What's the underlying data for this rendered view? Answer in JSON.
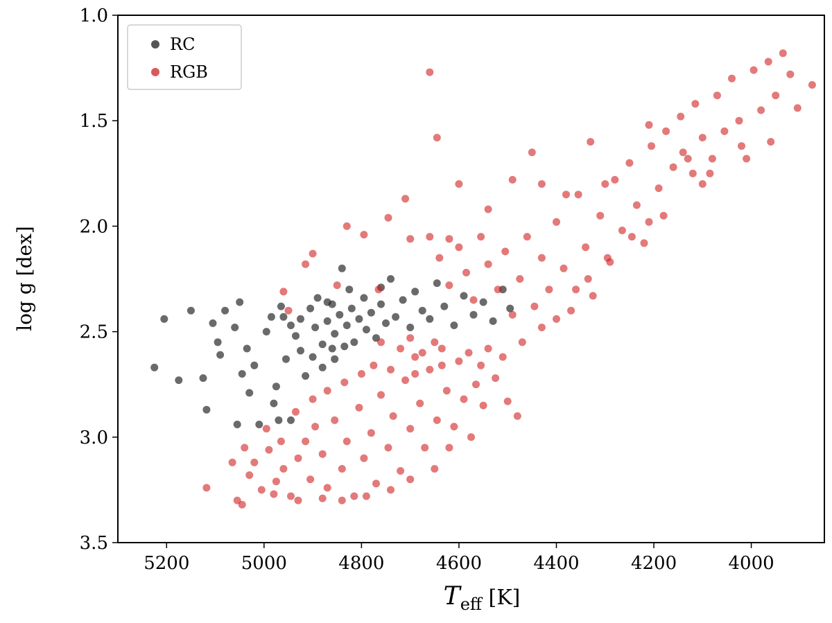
{
  "chart_data": {
    "type": "scatter",
    "title": "",
    "xlabel": {
      "main": "T",
      "sub": "eff",
      "unit": " [K]"
    },
    "ylabel": "log g  [dex]",
    "xlim": [
      5300,
      3850
    ],
    "ylim": [
      3.5,
      1.0
    ],
    "x_inverted": true,
    "y_inverted": true,
    "xticks": [
      5200,
      5000,
      4800,
      4600,
      4400,
      4200,
      4000
    ],
    "yticks": [
      1.0,
      1.5,
      2.0,
      2.5,
      3.0,
      3.5
    ],
    "xtick_labels": [
      "5200",
      "5000",
      "4800",
      "4600",
      "4400",
      "4200",
      "4000"
    ],
    "ytick_labels": [
      "1.0",
      "1.5",
      "2.0",
      "2.5",
      "3.0",
      "3.5"
    ],
    "grid": false,
    "legend_position": "top-left",
    "series": [
      {
        "name": "RC",
        "color": "#2b2b2b",
        "alpha": 0.7,
        "points": [
          [
            5225,
            2.67
          ],
          [
            5205,
            2.44
          ],
          [
            5175,
            2.73
          ],
          [
            5150,
            2.4
          ],
          [
            5125,
            2.72
          ],
          [
            5118,
            2.87
          ],
          [
            5105,
            2.46
          ],
          [
            5095,
            2.55
          ],
          [
            5090,
            2.61
          ],
          [
            5080,
            2.4
          ],
          [
            5060,
            2.48
          ],
          [
            5055,
            2.94
          ],
          [
            5050,
            2.36
          ],
          [
            5035,
            2.58
          ],
          [
            5020,
            2.66
          ],
          [
            5010,
            2.94
          ],
          [
            4995,
            2.5
          ],
          [
            4985,
            2.43
          ],
          [
            4975,
            2.76
          ],
          [
            4965,
            2.38
          ],
          [
            4955,
            2.63
          ],
          [
            4945,
            2.92
          ],
          [
            4935,
            2.52
          ],
          [
            4925,
            2.44
          ],
          [
            4915,
            2.71
          ],
          [
            4905,
            2.39
          ],
          [
            4895,
            2.48
          ],
          [
            4890,
            2.34
          ],
          [
            4880,
            2.56
          ],
          [
            4870,
            2.45
          ],
          [
            4860,
            2.37
          ],
          [
            4855,
            2.51
          ],
          [
            4845,
            2.42
          ],
          [
            4840,
            2.2
          ],
          [
            4830,
            2.47
          ],
          [
            4820,
            2.39
          ],
          [
            4815,
            2.55
          ],
          [
            4805,
            2.44
          ],
          [
            4795,
            2.34
          ],
          [
            4790,
            2.49
          ],
          [
            4780,
            2.41
          ],
          [
            4770,
            2.53
          ],
          [
            4760,
            2.37
          ],
          [
            4750,
            2.46
          ],
          [
            4740,
            2.25
          ],
          [
            4730,
            2.43
          ],
          [
            4715,
            2.35
          ],
          [
            4700,
            2.48
          ],
          [
            4690,
            2.31
          ],
          [
            4675,
            2.4
          ],
          [
            4660,
            2.44
          ],
          [
            4645,
            2.27
          ],
          [
            4630,
            2.38
          ],
          [
            4610,
            2.47
          ],
          [
            4590,
            2.33
          ],
          [
            4570,
            2.42
          ],
          [
            4550,
            2.36
          ],
          [
            4530,
            2.45
          ],
          [
            4510,
            2.3
          ],
          [
            4495,
            2.39
          ],
          [
            4980,
            2.84
          ],
          [
            4970,
            2.92
          ],
          [
            5030,
            2.79
          ],
          [
            5045,
            2.7
          ],
          [
            4925,
            2.59
          ],
          [
            4900,
            2.62
          ],
          [
            4880,
            2.67
          ],
          [
            4860,
            2.58
          ],
          [
            4945,
            2.47
          ],
          [
            4960,
            2.43
          ],
          [
            4825,
            2.3
          ],
          [
            4760,
            2.29
          ],
          [
            4870,
            2.36
          ],
          [
            4855,
            2.63
          ],
          [
            4835,
            2.57
          ]
        ]
      },
      {
        "name": "RGB",
        "color": "#d02020",
        "alpha": 0.6,
        "points": [
          [
            5118,
            3.24
          ],
          [
            5055,
            3.3
          ],
          [
            5045,
            3.32
          ],
          [
            5030,
            3.18
          ],
          [
            5020,
            3.12
          ],
          [
            5005,
            3.25
          ],
          [
            4990,
            3.06
          ],
          [
            4975,
            3.21
          ],
          [
            4960,
            3.15
          ],
          [
            4945,
            3.28
          ],
          [
            4930,
            3.1
          ],
          [
            4915,
            3.02
          ],
          [
            4905,
            3.2
          ],
          [
            4895,
            2.95
          ],
          [
            4880,
            3.08
          ],
          [
            4870,
            3.24
          ],
          [
            4855,
            2.92
          ],
          [
            4840,
            3.15
          ],
          [
            4830,
            3.02
          ],
          [
            4815,
            3.28
          ],
          [
            4805,
            2.86
          ],
          [
            4795,
            3.1
          ],
          [
            4780,
            2.98
          ],
          [
            4770,
            3.22
          ],
          [
            4760,
            2.8
          ],
          [
            4745,
            3.05
          ],
          [
            4735,
            2.9
          ],
          [
            4720,
            3.16
          ],
          [
            4710,
            2.73
          ],
          [
            4700,
            2.96
          ],
          [
            4690,
            2.62
          ],
          [
            4680,
            2.84
          ],
          [
            4670,
            3.05
          ],
          [
            4660,
            2.68
          ],
          [
            4645,
            2.92
          ],
          [
            4635,
            2.58
          ],
          [
            4625,
            2.78
          ],
          [
            4610,
            2.95
          ],
          [
            4600,
            2.64
          ],
          [
            4590,
            2.82
          ],
          [
            4580,
            2.6
          ],
          [
            4565,
            2.75
          ],
          [
            4555,
            2.66
          ],
          [
            4540,
            2.58
          ],
          [
            4525,
            2.72
          ],
          [
            4510,
            2.62
          ],
          [
            4760,
            2.55
          ],
          [
            4740,
            2.68
          ],
          [
            4720,
            2.58
          ],
          [
            4700,
            2.53
          ],
          [
            4690,
            2.7
          ],
          [
            4675,
            2.6
          ],
          [
            4650,
            2.55
          ],
          [
            4635,
            2.66
          ],
          [
            4660,
            2.05
          ],
          [
            4640,
            2.15
          ],
          [
            4620,
            2.28
          ],
          [
            4600,
            2.1
          ],
          [
            4585,
            2.22
          ],
          [
            4570,
            2.35
          ],
          [
            4555,
            2.05
          ],
          [
            4540,
            2.18
          ],
          [
            4520,
            2.3
          ],
          [
            4505,
            2.12
          ],
          [
            4490,
            2.42
          ],
          [
            4475,
            2.25
          ],
          [
            4460,
            2.05
          ],
          [
            4445,
            2.38
          ],
          [
            4430,
            2.15
          ],
          [
            4415,
            2.3
          ],
          [
            4400,
            1.98
          ],
          [
            4385,
            2.2
          ],
          [
            4370,
            2.4
          ],
          [
            4355,
            1.85
          ],
          [
            4340,
            2.1
          ],
          [
            4325,
            2.33
          ],
          [
            4310,
            1.95
          ],
          [
            4295,
            2.15
          ],
          [
            4280,
            1.78
          ],
          [
            4265,
            2.02
          ],
          [
            4250,
            1.7
          ],
          [
            4235,
            1.9
          ],
          [
            4220,
            2.08
          ],
          [
            4205,
            1.62
          ],
          [
            4190,
            1.82
          ],
          [
            4175,
            1.55
          ],
          [
            4160,
            1.72
          ],
          [
            4145,
            1.48
          ],
          [
            4130,
            1.68
          ],
          [
            4115,
            1.42
          ],
          [
            4100,
            1.58
          ],
          [
            4085,
            1.75
          ],
          [
            4070,
            1.38
          ],
          [
            4055,
            1.55
          ],
          [
            4040,
            1.3
          ],
          [
            4025,
            1.5
          ],
          [
            4010,
            1.68
          ],
          [
            3995,
            1.26
          ],
          [
            3980,
            1.45
          ],
          [
            3965,
            1.22
          ],
          [
            3950,
            1.38
          ],
          [
            3935,
            1.18
          ],
          [
            3920,
            1.28
          ],
          [
            3905,
            1.44
          ],
          [
            3875,
            1.33
          ],
          [
            3960,
            1.6
          ],
          [
            4020,
            1.62
          ],
          [
            4080,
            1.68
          ],
          [
            4140,
            1.65
          ],
          [
            4210,
            1.52
          ],
          [
            4300,
            1.8
          ],
          [
            4330,
            1.6
          ],
          [
            4380,
            1.85
          ],
          [
            4430,
            1.8
          ],
          [
            4450,
            1.65
          ],
          [
            4490,
            1.78
          ],
          [
            4540,
            1.92
          ],
          [
            4600,
            1.8
          ],
          [
            4660,
            1.27
          ],
          [
            4645,
            1.58
          ],
          [
            4710,
            1.87
          ],
          [
            4745,
            1.96
          ],
          [
            4795,
            2.04
          ],
          [
            4830,
            2.0
          ],
          [
            4900,
            2.13
          ],
          [
            4915,
            2.18
          ],
          [
            4620,
            2.06
          ],
          [
            4700,
            2.06
          ],
          [
            4765,
            2.3
          ],
          [
            4850,
            2.28
          ],
          [
            4470,
            2.55
          ],
          [
            4430,
            2.48
          ],
          [
            4400,
            2.44
          ],
          [
            4360,
            2.3
          ],
          [
            4335,
            2.25
          ],
          [
            4290,
            2.17
          ],
          [
            4245,
            2.05
          ],
          [
            4210,
            1.98
          ],
          [
            4180,
            1.95
          ],
          [
            4120,
            1.75
          ],
          [
            4100,
            1.8
          ],
          [
            4960,
            2.31
          ],
          [
            4950,
            2.4
          ],
          [
            4500,
            2.83
          ],
          [
            4480,
            2.9
          ],
          [
            4550,
            2.85
          ],
          [
            4575,
            3.0
          ],
          [
            4620,
            3.05
          ],
          [
            4650,
            3.15
          ],
          [
            4700,
            3.2
          ],
          [
            4740,
            3.25
          ],
          [
            4790,
            3.28
          ],
          [
            4840,
            3.3
          ],
          [
            4880,
            3.29
          ],
          [
            4930,
            3.3
          ],
          [
            4980,
            3.27
          ],
          [
            5040,
            3.05
          ],
          [
            5065,
            3.12
          ],
          [
            4995,
            2.96
          ],
          [
            4965,
            3.02
          ],
          [
            4935,
            2.88
          ],
          [
            4900,
            2.82
          ],
          [
            4870,
            2.78
          ],
          [
            4835,
            2.74
          ],
          [
            4800,
            2.7
          ],
          [
            4775,
            2.66
          ]
        ]
      }
    ]
  },
  "legend": {
    "items": [
      {
        "label": "RC",
        "color": "#555555"
      },
      {
        "label": "RGB",
        "color": "#d85a5a"
      }
    ]
  }
}
